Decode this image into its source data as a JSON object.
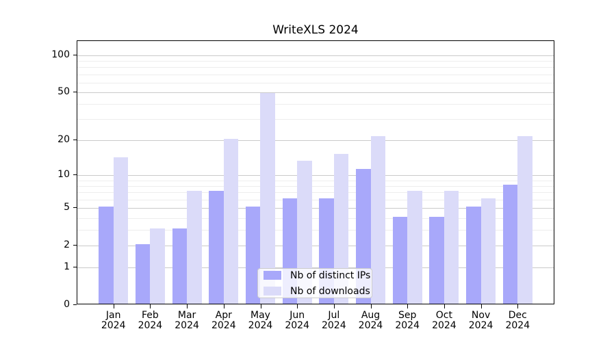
{
  "chart_data": {
    "type": "bar",
    "title": "WriteXLS 2024",
    "categories": [
      "Jan 2024",
      "Feb 2024",
      "Mar 2024",
      "Apr 2024",
      "May 2024",
      "Jun 2024",
      "Jul 2024",
      "Aug 2024",
      "Sep 2024",
      "Oct 2024",
      "Nov 2024",
      "Dec 2024"
    ],
    "series": [
      {
        "name": "Nb of distinct IPs",
        "color": "#a8a8fa",
        "values": [
          5,
          2,
          3,
          7,
          5,
          6,
          6,
          11,
          4,
          4,
          5,
          8
        ]
      },
      {
        "name": "Nb of downloads",
        "color": "#dbdbf9",
        "values": [
          14,
          3,
          7,
          20,
          48,
          13,
          15,
          21,
          7,
          7,
          6,
          21
        ]
      }
    ],
    "xlabel": "",
    "ylabel": "",
    "ylim": [
      0,
      130
    ],
    "y_scale": "log10(1+x)",
    "y_tick_values": [
      0,
      1,
      2,
      5,
      10,
      20,
      50,
      100
    ],
    "y_tick_labels": [
      "0",
      "1",
      "2",
      "5",
      "10",
      "20",
      "50",
      "100"
    ],
    "y_minor_gridline_values": [
      3,
      4,
      6,
      7,
      8,
      9,
      30,
      40,
      60,
      70,
      80,
      90
    ],
    "grid": true,
    "legend_position": "lower center"
  },
  "colors": {
    "background": "#ffffff",
    "bar_ips": "#a8a8fa",
    "bar_downloads": "#dbdbf9",
    "grid_major": "#c9c9c9",
    "grid_minor": "#ededed",
    "axis": "#000000",
    "text": "#000000",
    "legend_border": "#cccccc"
  }
}
